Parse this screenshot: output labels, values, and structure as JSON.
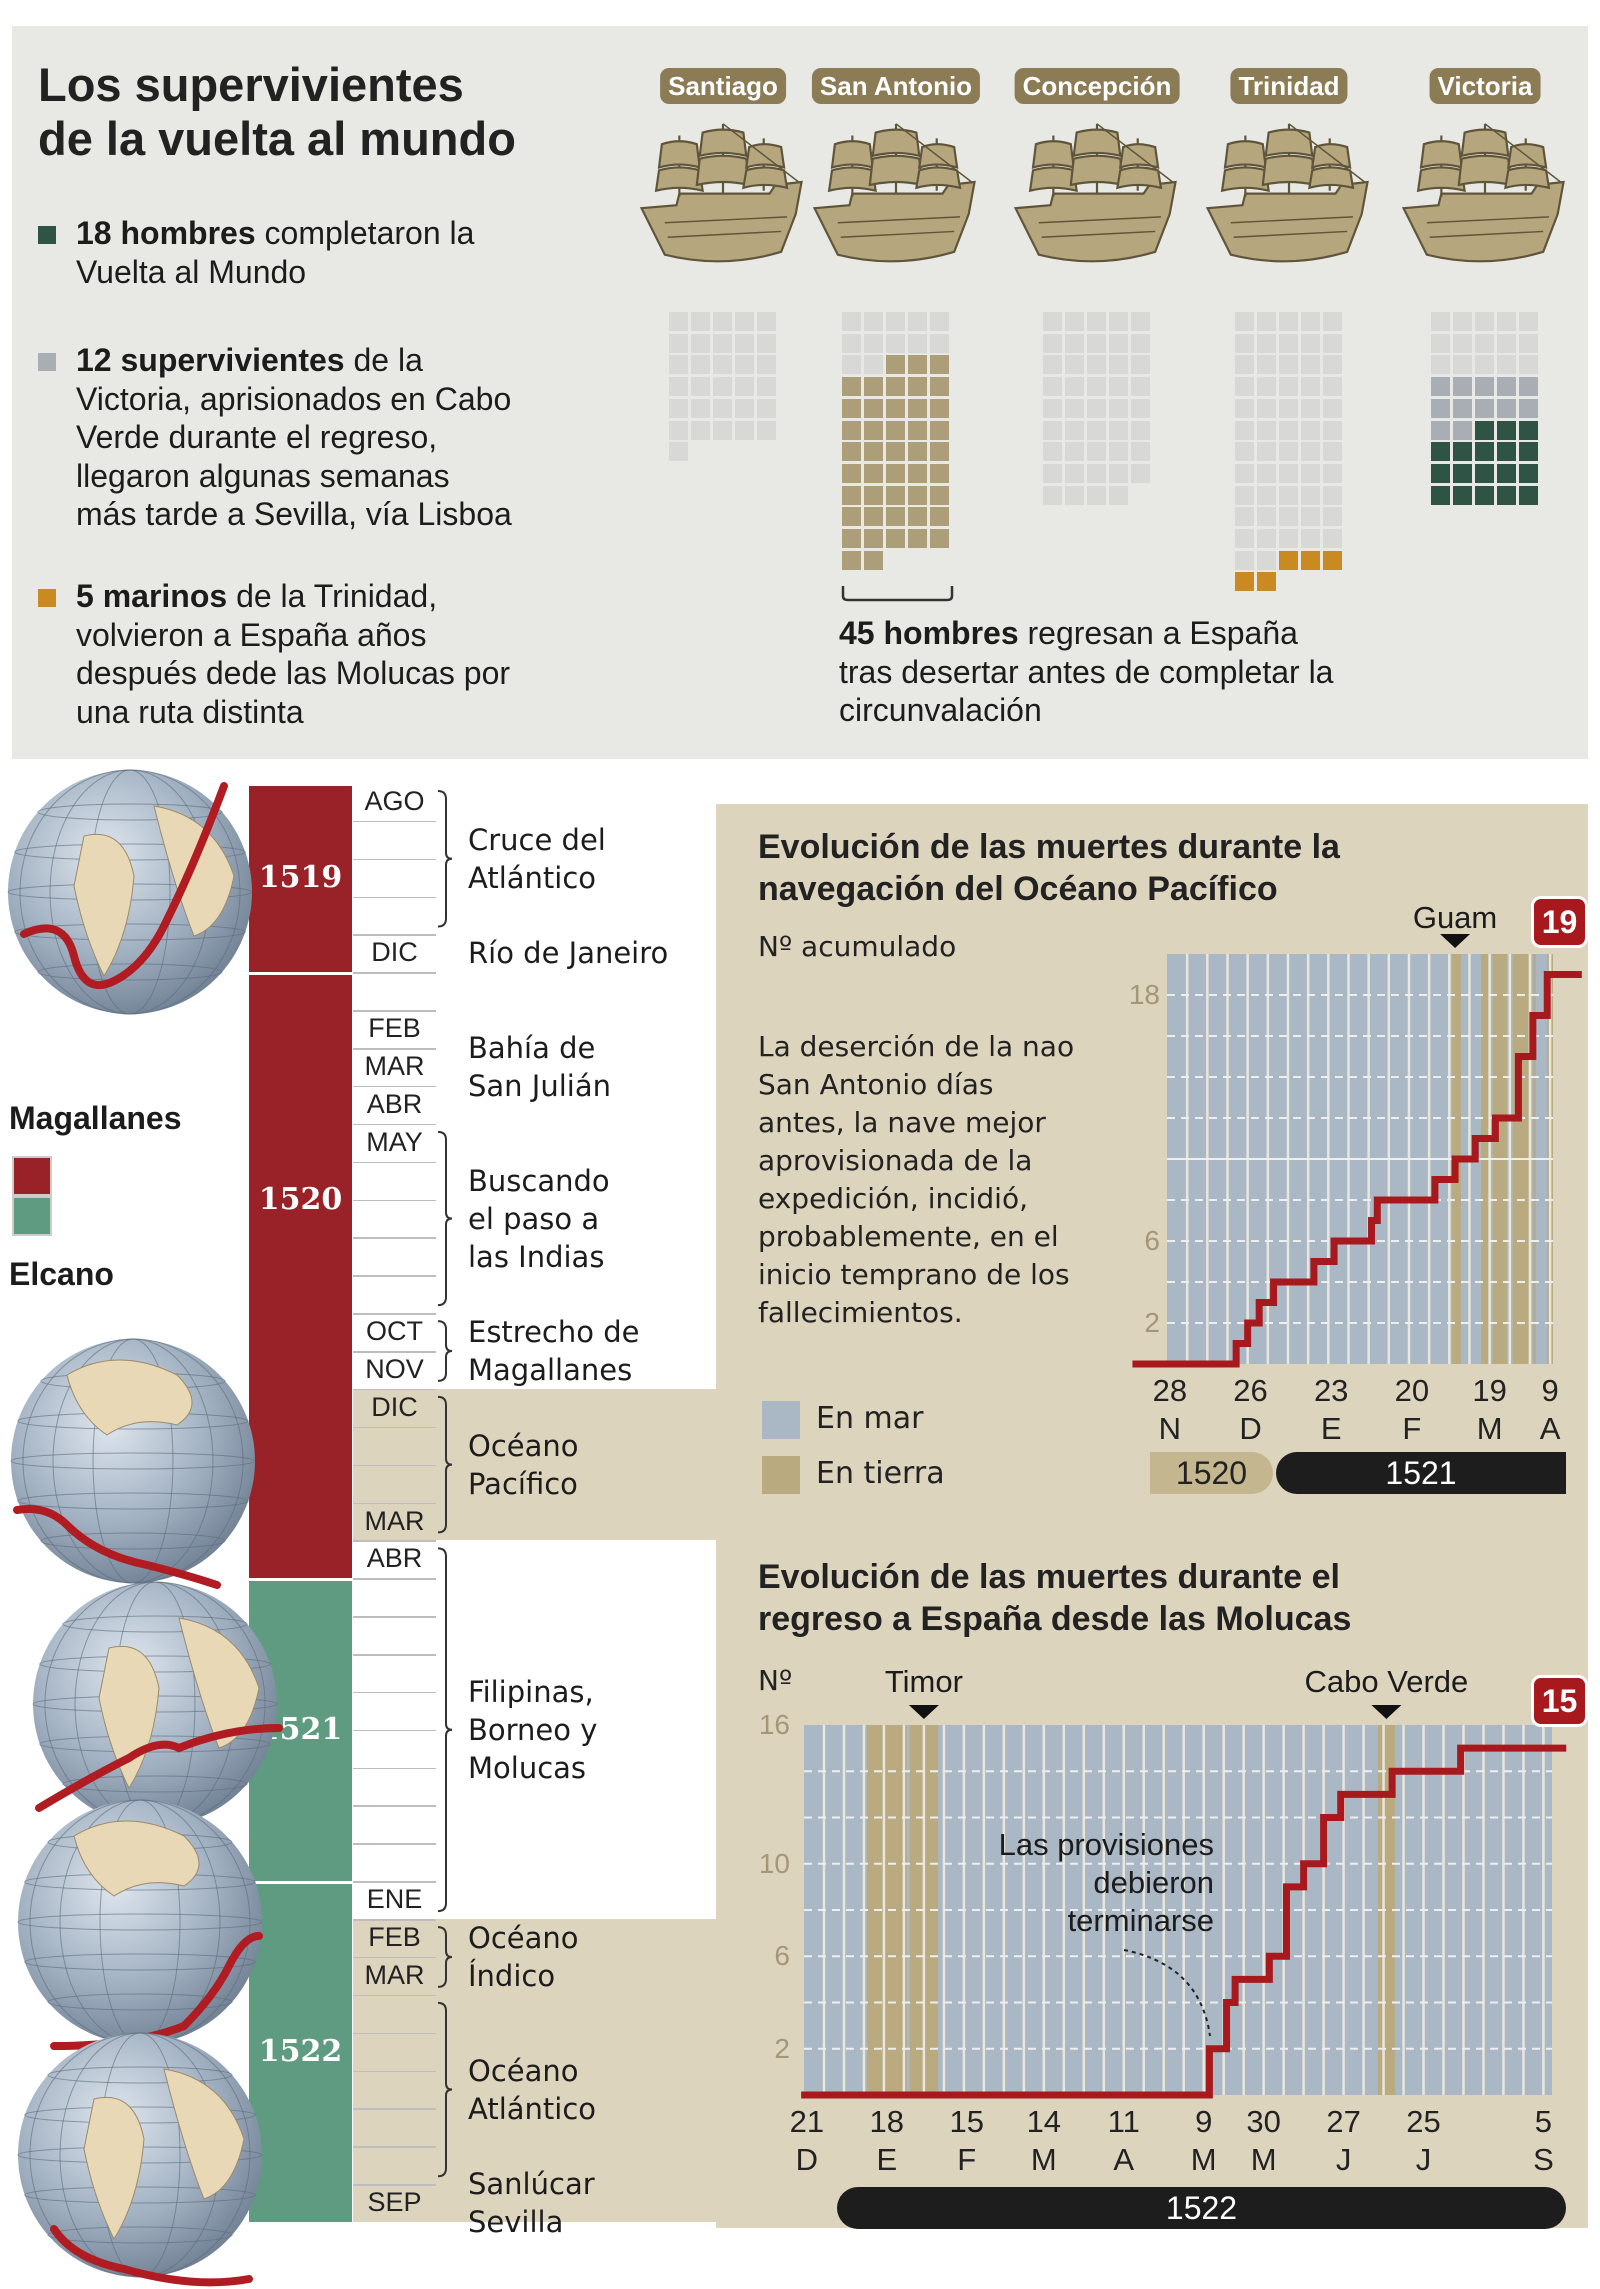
{
  "colors": {
    "magallanes": "#982227",
    "elcano": "#5e9b81",
    "sea": "#aab8c6",
    "land": "#b9aa80",
    "panel": "#ddd4bd",
    "line": "#a8191e",
    "completed": "#2f5445",
    "victoria_prisoners": "#a9aeb5",
    "trinidad": "#c98a22",
    "deserters": "#ab9e78",
    "lost": "#d8d9d6"
  },
  "top": {
    "title": [
      "Los supervivientes",
      "de la vuelta al mundo"
    ],
    "bullets": [
      {
        "color": "#2f5445",
        "bold": "18 hombres",
        "rest": " completaron la",
        "lines": [
          "Vuelta al Mundo"
        ]
      },
      {
        "color": "#a9aeb5",
        "bold": "12 supervivientes",
        "rest": " de la",
        "lines": [
          "Victoria, aprisionados en Cabo",
          "Verde durante el regreso,",
          "llegaron algunas semanas",
          "más tarde a Sevilla, vía Lisboa"
        ]
      },
      {
        "color": "#c98a22",
        "bold": "5 marinos",
        "rest": " de la Trinidad,",
        "lines": [
          "volvieron a España años",
          "después dede las Molucas por",
          "una ruta distinta"
        ]
      }
    ],
    "ships": [
      {
        "name": "Santiago",
        "crew": [
          {
            "type": "lost",
            "n": 31
          }
        ]
      },
      {
        "name": "San Antonio",
        "crew": [
          {
            "type": "lost",
            "n": 12
          },
          {
            "type": "deserters",
            "n": 45
          }
        ]
      },
      {
        "name": "Concepción",
        "crew": [
          {
            "type": "lost",
            "n": 44
          }
        ]
      },
      {
        "name": "Trinidad",
        "crew": [
          {
            "type": "lost",
            "n": 57
          },
          {
            "type": "trinidad",
            "n": 5
          }
        ]
      },
      {
        "name": "Victoria",
        "crew": [
          {
            "type": "lost",
            "n": 15
          },
          {
            "type": "victoria_prisoners",
            "n": 12
          },
          {
            "type": "completed",
            "n": 18
          }
        ]
      }
    ],
    "deserters_note": {
      "bold": "45 hombres",
      "rest": " regresan a España",
      "lines": [
        "tras desertar antes de completar la",
        "circunvalación"
      ]
    }
  },
  "legend": {
    "magallanes": "Magallanes",
    "elcano": "Elcano"
  },
  "timeline": {
    "years": [
      {
        "label": "1519",
        "from": "1519-08",
        "to": "1519-12",
        "leader": "magallanes"
      },
      {
        "label": "1520",
        "from": "1520-01",
        "to": "1520-12",
        "leader": "magallanes"
      },
      {
        "label": "",
        "from": "1521-01",
        "to": "1521-04",
        "leader": "magallanes"
      },
      {
        "label": "1521",
        "from": "1521-05",
        "to": "1521-12",
        "leader": "elcano"
      },
      {
        "label": "1522",
        "from": "1522-01",
        "to": "1522-09",
        "leader": "elcano"
      }
    ],
    "start": "1519-08",
    "end": "1522-09",
    "months": [
      {
        "m": "1519-08",
        "label": "AGO"
      },
      {
        "m": "1519-12",
        "label": "DIC"
      },
      {
        "m": "1520-02",
        "label": "FEB"
      },
      {
        "m": "1520-03",
        "label": "MAR"
      },
      {
        "m": "1520-04",
        "label": "ABR"
      },
      {
        "m": "1520-05",
        "label": "MAY"
      },
      {
        "m": "1520-10",
        "label": "OCT"
      },
      {
        "m": "1520-11",
        "label": "NOV"
      },
      {
        "m": "1520-12",
        "label": "DIC"
      },
      {
        "m": "1521-03",
        "label": "MAR"
      },
      {
        "m": "1521-04",
        "label": "ABR"
      },
      {
        "m": "1522-01",
        "label": "ENE"
      },
      {
        "m": "1522-02",
        "label": "FEB"
      },
      {
        "m": "1522-03",
        "label": "MAR"
      },
      {
        "m": "1522-09",
        "label": "SEP"
      }
    ],
    "events": [
      {
        "lines": [
          "Cruce del",
          "Atlántico"
        ],
        "from": "1519-08",
        "to": "1519-11",
        "bracket": true,
        "sea": false
      },
      {
        "lines": [
          "Río de Janeiro"
        ],
        "from": "1519-12",
        "to": "1519-12",
        "bracket": false,
        "sea": false
      },
      {
        "lines": [
          "Bahía de",
          "San Julián"
        ],
        "from": "1520-02",
        "to": "1520-04",
        "bracket": false,
        "sea": false
      },
      {
        "lines": [
          "Buscando",
          "el paso a",
          "las Indias"
        ],
        "from": "1520-05",
        "to": "1520-09",
        "bracket": true,
        "sea": false
      },
      {
        "lines": [
          "Estrecho de",
          "Magallanes"
        ],
        "from": "1520-10",
        "to": "1520-11",
        "bracket": true,
        "sea": false
      },
      {
        "lines": [
          "Océano",
          "Pacífico"
        ],
        "from": "1520-12",
        "to": "1521-03",
        "bracket": true,
        "sea": true
      },
      {
        "lines": [
          "Filipinas,",
          "Borneo y",
          "Molucas"
        ],
        "from": "1521-04",
        "to": "1522-01",
        "bracket": true,
        "sea": false
      },
      {
        "lines": [
          "Océano",
          "Índico"
        ],
        "from": "1522-02",
        "to": "1522-03",
        "bracket": true,
        "sea": true
      },
      {
        "lines": [
          "Océano",
          "Atlántico"
        ],
        "from": "1522-04",
        "to": "1522-08",
        "bracket": true,
        "sea": true
      },
      {
        "lines": [
          "Sanlúcar",
          "Sevilla"
        ],
        "from": "1522-09",
        "to": "1522-09",
        "bracket": false,
        "sea": true
      }
    ]
  },
  "chart_data": [
    {
      "type": "line",
      "step": true,
      "title": [
        "Evolución de las muertes durante la",
        "navegación del Océano Pacífico"
      ],
      "ylabel": "Nº acumulado",
      "note": [
        "La deserción de la nao",
        "San Antonio días",
        "antes, la nave mejor",
        "aprovisionada de la",
        "expedición, incidió,",
        "probablemente, en el",
        "inicio temprano de los",
        "fallecimientos."
      ],
      "legend": [
        {
          "label": "En mar",
          "color": "#aab8c6"
        },
        {
          "label": "En tierra",
          "color": "#b9aa80"
        }
      ],
      "xlim": [
        "1520-11-27",
        "1521-04-10"
      ],
      "ylim": [
        0,
        20
      ],
      "grid": true,
      "yticks": [
        2,
        6,
        18
      ],
      "xticks": [
        {
          "date": "1520-11-28",
          "day": "28",
          "month": "N"
        },
        {
          "date": "1520-12-26",
          "day": "26",
          "month": "D"
        },
        {
          "date": "1521-01-23",
          "day": "23",
          "month": "E"
        },
        {
          "date": "1521-02-20",
          "day": "20",
          "month": "F"
        },
        {
          "date": "1521-03-19",
          "day": "19",
          "month": "M"
        },
        {
          "date": "1521-04-09",
          "day": "9",
          "month": "A"
        }
      ],
      "year_bars": [
        {
          "label": "1520",
          "style": "light"
        },
        {
          "label": "1521",
          "style": "dark"
        }
      ],
      "markers": [
        {
          "label": "Guam",
          "date": "1521-03-07"
        }
      ],
      "land": [
        [
          "1521-03-06",
          "1521-03-09"
        ],
        [
          "1521-03-16",
          "1521-03-19"
        ],
        [
          "1521-03-20",
          "1521-03-25"
        ],
        [
          "1521-03-27",
          "1521-04-02"
        ],
        [
          "1521-04-03",
          "1521-04-04"
        ],
        [
          "1521-04-08",
          "1521-04-10"
        ]
      ],
      "start": "1520-11-15",
      "end": "1521-04-20",
      "steps": [
        [
          "1520-12-21",
          1
        ],
        [
          "1520-12-25",
          2
        ],
        [
          "1520-12-29",
          3
        ],
        [
          "1521-01-03",
          4
        ],
        [
          "1521-01-17",
          5
        ],
        [
          "1521-01-24",
          6
        ],
        [
          "1521-02-06",
          7
        ],
        [
          "1521-02-08",
          8
        ],
        [
          "1521-02-28",
          9
        ],
        [
          "1521-03-07",
          10
        ],
        [
          "1521-03-14",
          11
        ],
        [
          "1521-03-21",
          12
        ],
        [
          "1521-03-29",
          15
        ],
        [
          "1521-04-03",
          17
        ],
        [
          "1521-04-08",
          19
        ]
      ],
      "total": "19"
    },
    {
      "type": "line",
      "step": true,
      "title": [
        "Evolución de las muertes durante el",
        "regreso a España desde las Molucas"
      ],
      "ylabel": "Nº",
      "annotation": [
        "Las provisiones",
        "debieron",
        "terminarse"
      ],
      "xlim": [
        "1521-12-20",
        "1522-09-08"
      ],
      "ylim": [
        0,
        16
      ],
      "grid": true,
      "yticks": [
        2,
        6,
        10,
        16
      ],
      "xticks": [
        {
          "date": "1521-12-21",
          "day": "21",
          "month": "D"
        },
        {
          "date": "1522-01-18",
          "day": "18",
          "month": "E"
        },
        {
          "date": "1522-02-15",
          "day": "15",
          "month": "F"
        },
        {
          "date": "1522-03-14",
          "day": "14",
          "month": "M"
        },
        {
          "date": "1522-04-11",
          "day": "11",
          "month": "A"
        },
        {
          "date": "1522-05-09",
          "day": "9",
          "month": "M"
        },
        {
          "date": "1522-05-30",
          "day": "30",
          "month": "M"
        },
        {
          "date": "1522-06-27",
          "day": "27",
          "month": "J"
        },
        {
          "date": "1522-07-25",
          "day": "25",
          "month": "J"
        },
        {
          "date": "1522-09-05",
          "day": "5",
          "month": "S"
        }
      ],
      "year_bars": [
        {
          "label": "1522",
          "style": "dark"
        }
      ],
      "markers": [
        {
          "label": "Timor",
          "date": "1522-01-31"
        },
        {
          "label": "Cabo Verde",
          "date": "1522-07-12"
        }
      ],
      "land": [
        [
          "1522-01-11",
          "1522-01-25"
        ],
        [
          "1522-01-26",
          "1522-02-05"
        ],
        [
          "1522-07-09",
          "1522-07-15"
        ]
      ],
      "start": "1521-12-19",
      "end": "1522-09-13",
      "steps": [
        [
          "1522-05-11",
          2
        ],
        [
          "1522-05-17",
          4
        ],
        [
          "1522-05-20",
          5
        ],
        [
          "1522-06-01",
          6
        ],
        [
          "1522-06-07",
          9
        ],
        [
          "1522-06-13",
          10
        ],
        [
          "1522-06-20",
          12
        ],
        [
          "1522-06-26",
          13
        ],
        [
          "1522-07-14",
          14
        ],
        [
          "1522-08-07",
          15
        ]
      ],
      "total": "15"
    }
  ]
}
